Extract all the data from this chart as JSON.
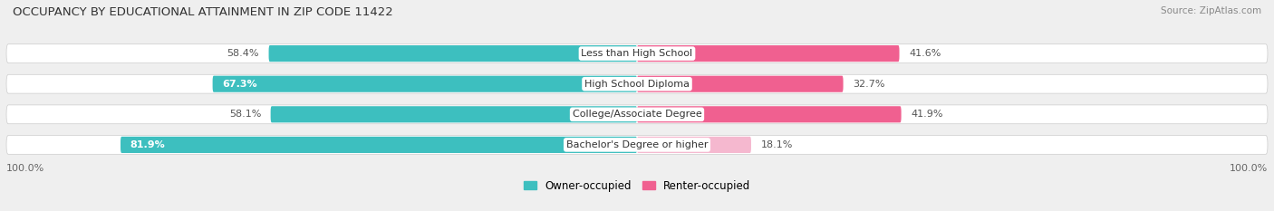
{
  "title": "OCCUPANCY BY EDUCATIONAL ATTAINMENT IN ZIP CODE 11422",
  "source": "Source: ZipAtlas.com",
  "categories": [
    "Less than High School",
    "High School Diploma",
    "College/Associate Degree",
    "Bachelor's Degree or higher"
  ],
  "owner_pct": [
    58.4,
    67.3,
    58.1,
    81.9
  ],
  "renter_pct": [
    41.6,
    32.7,
    41.9,
    18.1
  ],
  "owner_color": "#3DBFBF",
  "renter_color": "#F06090",
  "renter_light_color": "#F5B8CF",
  "background_color": "#efefef",
  "bar_bg_color": "#e2e2e2",
  "bar_height": 0.62,
  "legend_owner": "Owner-occupied",
  "legend_renter": "Renter-occupied",
  "axis_label_left": "100.0%",
  "axis_label_right": "100.0%",
  "label_color_inside": "#ffffff",
  "label_color_outside": "#555555",
  "category_color": "#333333"
}
